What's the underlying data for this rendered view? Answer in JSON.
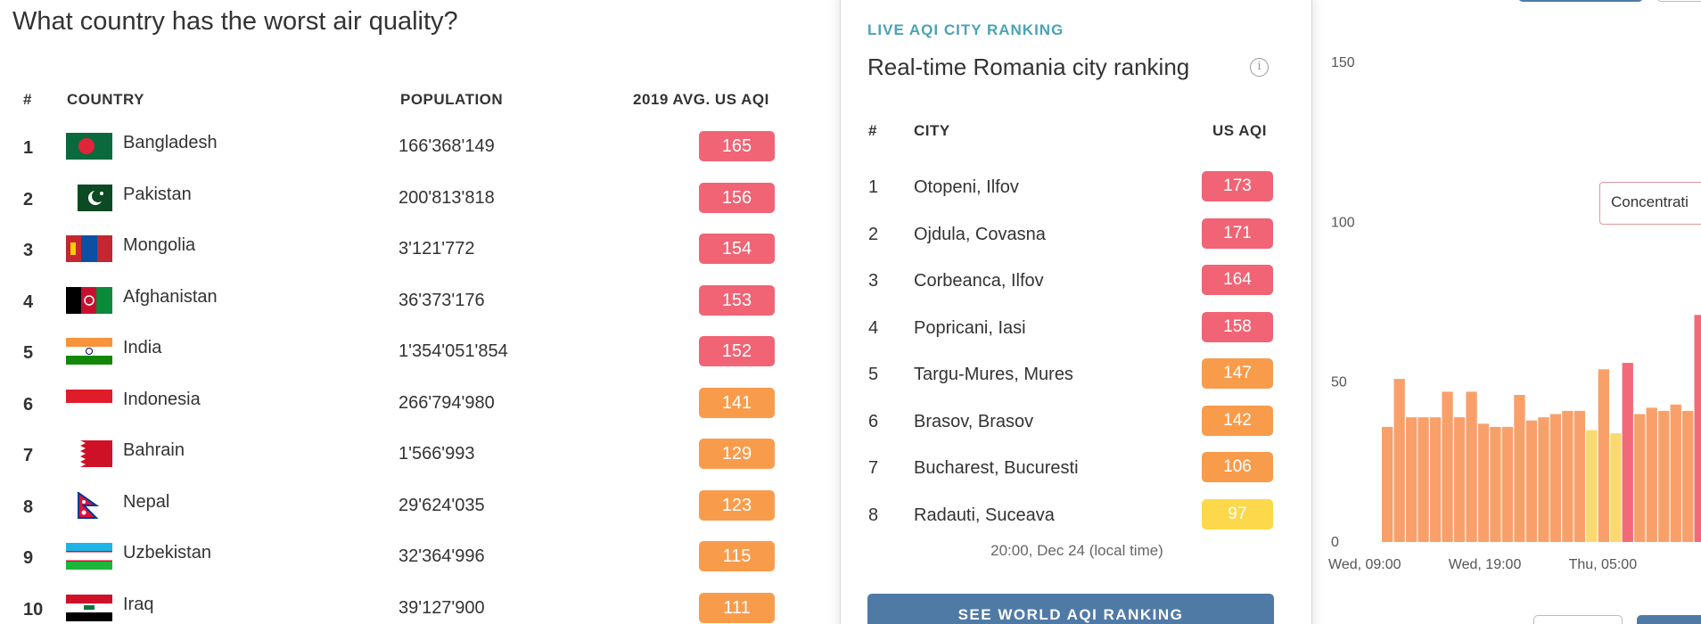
{
  "left_panel": {
    "question": "What country has the worst air quality?",
    "headers": {
      "rank": "#",
      "country": "COUNTRY",
      "population": "POPULATION",
      "aqi": "2019 AVG. US AQI"
    },
    "rows": [
      {
        "rank": "1",
        "country": "Bangladesh",
        "population": "166'368'149",
        "aqi": "165",
        "aqi_color": "#f06475",
        "flag": "bangladesh-flag"
      },
      {
        "rank": "2",
        "country": "Pakistan",
        "population": "200'813'818",
        "aqi": "156",
        "aqi_color": "#f06475",
        "flag": "pakistan-flag"
      },
      {
        "rank": "3",
        "country": "Mongolia",
        "population": "3'121'772",
        "aqi": "154",
        "aqi_color": "#f06475",
        "flag": "mongolia-flag"
      },
      {
        "rank": "4",
        "country": "Afghanistan",
        "population": "36'373'176",
        "aqi": "153",
        "aqi_color": "#f06475",
        "flag": "afghanistan-flag"
      },
      {
        "rank": "5",
        "country": "India",
        "population": "1'354'051'854",
        "aqi": "152",
        "aqi_color": "#f06475",
        "flag": "india-flag"
      },
      {
        "rank": "6",
        "country": "Indonesia",
        "population": "266'794'980",
        "aqi": "141",
        "aqi_color": "#f89c4c",
        "flag": "indonesia-flag"
      },
      {
        "rank": "7",
        "country": "Bahrain",
        "population": "1'566'993",
        "aqi": "129",
        "aqi_color": "#f89c4c",
        "flag": "bahrain-flag"
      },
      {
        "rank": "8",
        "country": "Nepal",
        "population": "29'624'035",
        "aqi": "123",
        "aqi_color": "#f89c4c",
        "flag": "nepal-flag"
      },
      {
        "rank": "9",
        "country": "Uzbekistan",
        "population": "32'364'996",
        "aqi": "115",
        "aqi_color": "#f89c4c",
        "flag": "uzbekistan-flag"
      },
      {
        "rank": "10",
        "country": "Iraq",
        "population": "39'127'900",
        "aqi": "111",
        "aqi_color": "#f89c4c",
        "flag": "iraq-flag"
      }
    ]
  },
  "card": {
    "eyebrow": "LIVE AQI CITY RANKING",
    "title": "Real-time Romania city ranking",
    "info_icon_glyph": "i",
    "headers": {
      "rank": "#",
      "city": "CITY",
      "aqi": "US AQI"
    },
    "rows": [
      {
        "rank": "1",
        "city": "Otopeni, Ilfov",
        "aqi": "173",
        "aqi_color": "#f06475"
      },
      {
        "rank": "2",
        "city": "Ojdula, Covasna",
        "aqi": "171",
        "aqi_color": "#f06475"
      },
      {
        "rank": "3",
        "city": "Corbeanca, Ilfov",
        "aqi": "164",
        "aqi_color": "#f06475"
      },
      {
        "rank": "4",
        "city": "Popricani, Iasi",
        "aqi": "158",
        "aqi_color": "#f06475"
      },
      {
        "rank": "5",
        "city": "Targu-Mures, Mures",
        "aqi": "147",
        "aqi_color": "#f89c4c"
      },
      {
        "rank": "6",
        "city": "Brasov, Brasov",
        "aqi": "142",
        "aqi_color": "#f89c4c"
      },
      {
        "rank": "7",
        "city": "Bucharest, Bucuresti",
        "aqi": "106",
        "aqi_color": "#f89c4c"
      },
      {
        "rank": "8",
        "city": "Radauti, Suceava",
        "aqi": "97",
        "aqi_color": "#fcd84a"
      }
    ],
    "timestamp": "20:00, Dec 24 (local time)",
    "button_label": "SEE WORLD AQI RANKING"
  },
  "chart_data": {
    "type": "bar",
    "title": "",
    "xlabel": "",
    "ylabel": "",
    "ylim": [
      0,
      150
    ],
    "y_ticks": [
      "0",
      "50",
      "100",
      "150"
    ],
    "x_tick_labels": [
      {
        "label": "Wed, 09:00",
        "index": 0
      },
      {
        "label": "Wed, 19:00",
        "index": 10
      },
      {
        "label": "Thu, 05:00",
        "index": 20
      }
    ],
    "tooltip_text": "Concentrati",
    "values": [
      36,
      51,
      39,
      39,
      39,
      47,
      39,
      47,
      37,
      36,
      36,
      46,
      38,
      39,
      40,
      41,
      41,
      35,
      54,
      34,
      56,
      40,
      42,
      41,
      43,
      41,
      71
    ],
    "colors": [
      "#f9a06a",
      "#f9a06a",
      "#f9a06a",
      "#f9a06a",
      "#f9a06a",
      "#f9a06a",
      "#f9a06a",
      "#f9a06a",
      "#f9a06a",
      "#f9a06a",
      "#f9a06a",
      "#f9a06a",
      "#f9a06a",
      "#f9a06a",
      "#f9a06a",
      "#f9a06a",
      "#f9a06a",
      "#fcd870",
      "#f9a06a",
      "#fcd870",
      "#f26a7a",
      "#f9a06a",
      "#f9a06a",
      "#f9a06a",
      "#f9a06a",
      "#f9a06a",
      "#f26a7a"
    ]
  }
}
